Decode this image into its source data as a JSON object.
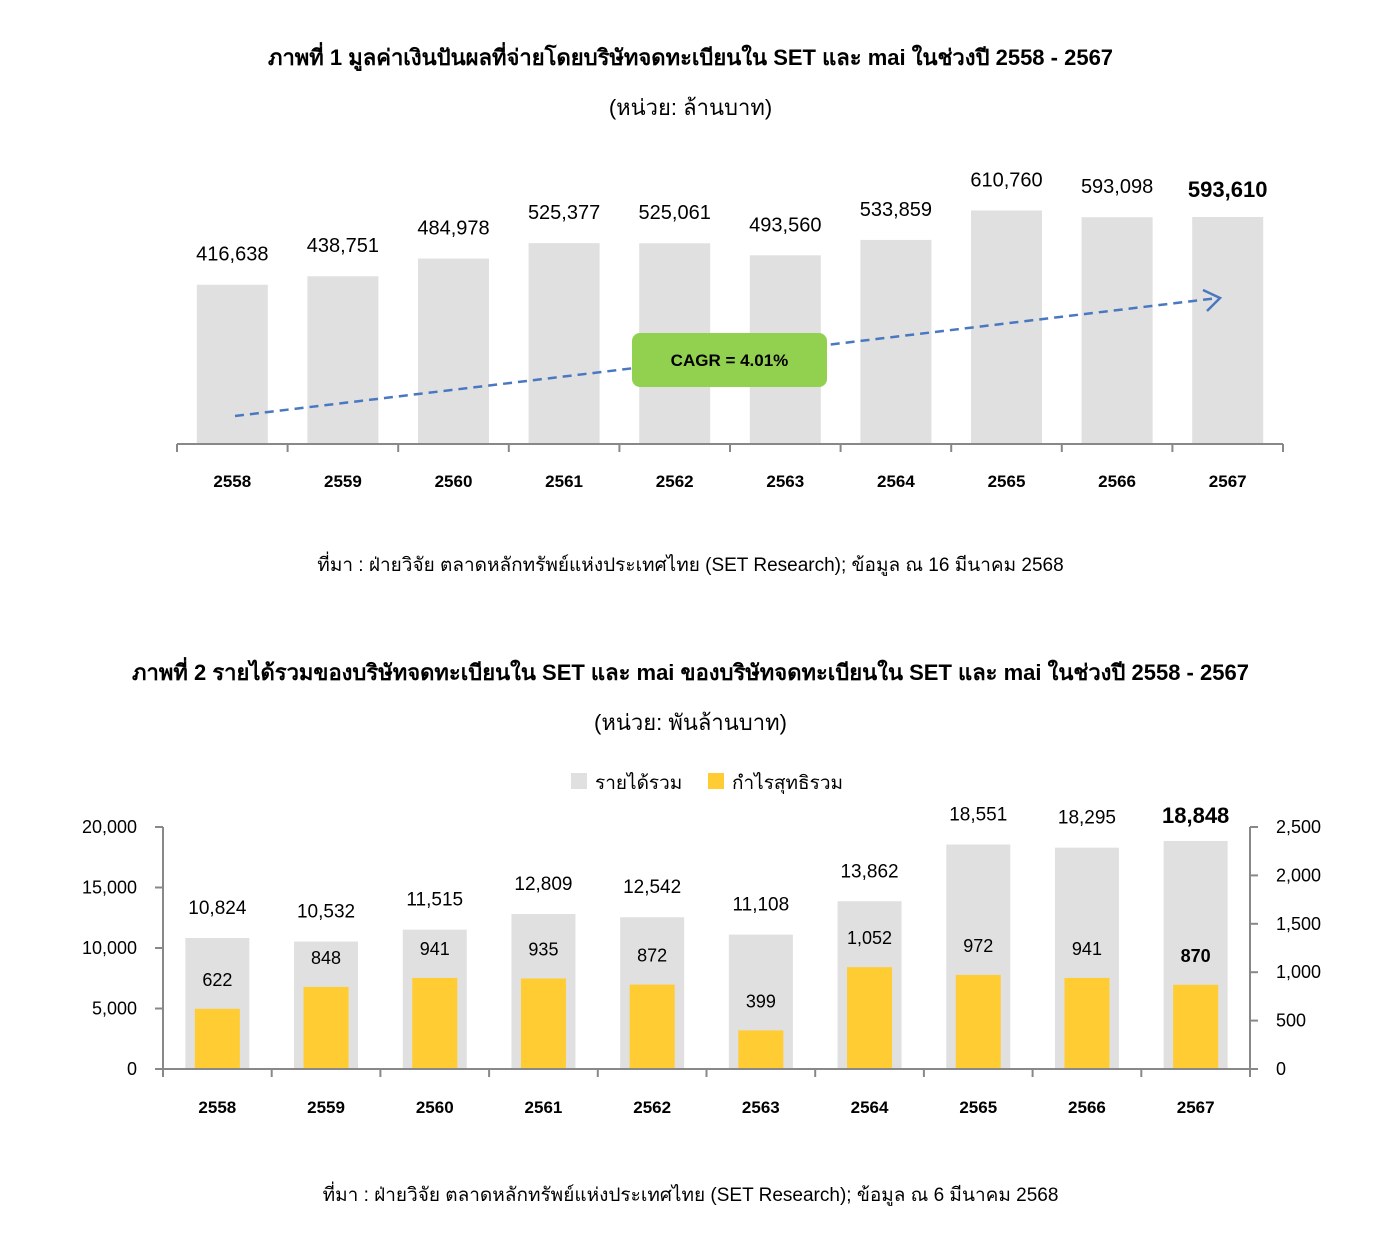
{
  "charts": [
    {
      "title": "ภาพที่ 1 มูลค่าเงินปันผลที่จ่ายโดยบริษัทจดทะเบียนใน SET และ mai ในช่วงปี 2558 - 2567",
      "unit": "(หน่วย:  ล้านบาท)",
      "source": "ที่มา : ฝ่ายวิจัย ตลาดหลักทรัพย์แห่งประเทศไทย (SET Research); ข้อมูล ณ 16 มีนาคม 2568",
      "annotation": "CAGR = 4.01%"
    },
    {
      "title": "ภาพที่ 2 รายได้รวมของบริษัทจดทะเบียนใน SET และ mai ของบริษัทจดทะเบียนใน SET และ mai ในช่วงปี 2558 - 2567",
      "unit": "(หน่วย:  พันล้านบาท)",
      "source": "ที่มา : ฝ่ายวิจัย ตลาดหลักทรัพย์แห่งประเทศไทย (SET Research); ข้อมูล ณ 6 มีนาคม 2568"
    }
  ],
  "colors": {
    "bar_gray": "#e0e0e0",
    "bar_yellow": "#ffcc33",
    "trend_blue": "#4a78c0",
    "badge_green": "#92d050",
    "axis": "#888888"
  },
  "chart_data": [
    {
      "type": "bar",
      "categories": [
        "2558",
        "2559",
        "2560",
        "2561",
        "2562",
        "2563",
        "2564",
        "2565",
        "2566",
        "2567"
      ],
      "values": [
        416638,
        438751,
        484978,
        525377,
        525061,
        493560,
        533859,
        610760,
        593098,
        593610
      ],
      "value_labels": [
        "416,638",
        "438,751",
        "484,978",
        "525,377",
        "525,061",
        "493,560",
        "533,859",
        "610,760",
        "593,098",
        "593,610"
      ],
      "highlight_last": true,
      "trend_line": "dashed arrow",
      "ylim": [
        0,
        680000
      ]
    },
    {
      "type": "bar",
      "categories": [
        "2558",
        "2559",
        "2560",
        "2561",
        "2562",
        "2563",
        "2564",
        "2565",
        "2566",
        "2567"
      ],
      "series": [
        {
          "name": "รายได้รวม",
          "axis": "left",
          "values": [
            10824,
            10532,
            11515,
            12809,
            12542,
            11108,
            13862,
            18551,
            18295,
            18848
          ],
          "labels": [
            "10,824",
            "10,532",
            "11,515",
            "12,809",
            "12,542",
            "11,108",
            "13,862",
            "18,551",
            "18,295",
            "18,848"
          ]
        },
        {
          "name": "กำไรสุทธิรวม",
          "axis": "right",
          "values": [
            622,
            848,
            941,
            935,
            872,
            399,
            1052,
            972,
            941,
            870
          ],
          "labels": [
            "622",
            "848",
            "941",
            "935",
            "872",
            "399",
            "1,052",
            "972",
            "941",
            "870"
          ]
        }
      ],
      "y_left": {
        "lim": [
          0,
          20000
        ],
        "ticks": [
          "0",
          "5,000",
          "10,000",
          "15,000",
          "20,000"
        ]
      },
      "y_right": {
        "lim": [
          0,
          2500
        ],
        "ticks": [
          "0",
          "500",
          "1,000",
          "1,500",
          "2,000",
          "2,500"
        ]
      },
      "legend_position": "top-center",
      "highlight_last": true
    }
  ]
}
